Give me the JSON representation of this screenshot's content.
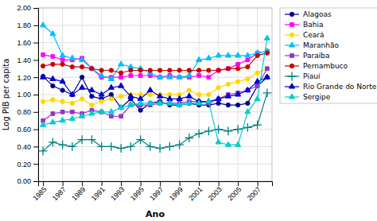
{
  "chart_data": {
    "type": "line",
    "x": [
      1985,
      1986,
      1987,
      1988,
      1989,
      1990,
      1991,
      1992,
      1993,
      1994,
      1995,
      1996,
      1997,
      1998,
      1999,
      2000,
      2001,
      2002,
      2003,
      2004,
      2005,
      2006,
      2007,
      2008
    ],
    "series": [
      {
        "name": "Alagoas",
        "color": "#00008B",
        "marker": "circle",
        "values": [
          1.21,
          1.1,
          1.05,
          1.0,
          1.2,
          0.98,
          0.95,
          1.0,
          0.85,
          0.95,
          0.82,
          0.9,
          0.92,
          0.88,
          0.88,
          0.9,
          0.88,
          0.88,
          0.9,
          0.88,
          0.88,
          0.9,
          1.1,
          1.2
        ]
      },
      {
        "name": "Bahia",
        "color": "#FF00FF",
        "marker": "square",
        "values": [
          1.46,
          1.44,
          1.4,
          1.4,
          1.42,
          1.3,
          1.2,
          1.2,
          1.2,
          1.22,
          1.22,
          1.22,
          1.2,
          1.22,
          1.2,
          1.2,
          1.22,
          1.2,
          1.28,
          1.3,
          1.35,
          1.4,
          1.48,
          1.5
        ]
      },
      {
        "name": "Ceará",
        "color": "#FFD700",
        "marker": "circle",
        "values": [
          0.92,
          0.94,
          0.92,
          0.9,
          0.95,
          0.88,
          0.92,
          0.95,
          0.98,
          1.0,
          1.0,
          1.0,
          1.0,
          1.0,
          1.0,
          1.05,
          1.0,
          1.0,
          1.08,
          1.12,
          1.15,
          1.18,
          1.25,
          1.3
        ]
      },
      {
        "name": "Maranhão",
        "color": "#00BFFF",
        "marker": "triangle",
        "values": [
          1.8,
          1.7,
          1.45,
          1.42,
          1.4,
          1.3,
          1.22,
          1.18,
          1.35,
          1.32,
          1.3,
          1.25,
          1.2,
          1.2,
          1.2,
          1.22,
          1.4,
          1.42,
          1.45,
          1.45,
          1.45,
          1.45,
          1.48,
          1.5
        ]
      },
      {
        "name": "Paraíba",
        "color": "#9932CC",
        "marker": "square",
        "values": [
          0.7,
          0.78,
          0.8,
          0.8,
          0.78,
          0.82,
          0.8,
          0.75,
          0.75,
          0.88,
          0.88,
          0.88,
          0.9,
          0.9,
          0.9,
          0.92,
          0.92,
          0.9,
          0.95,
          1.0,
          1.02,
          1.05,
          1.1,
          1.3
        ]
      },
      {
        "name": "Pernambuco",
        "color": "#CC0000",
        "marker": "circle",
        "values": [
          1.33,
          1.35,
          1.35,
          1.32,
          1.32,
          1.3,
          1.28,
          1.28,
          1.25,
          1.28,
          1.28,
          1.28,
          1.28,
          1.28,
          1.28,
          1.28,
          1.28,
          1.28,
          1.28,
          1.3,
          1.3,
          1.32,
          1.45,
          1.48
        ]
      },
      {
        "name": "Piauí",
        "color": "#008080",
        "marker": "plus",
        "values": [
          0.35,
          0.45,
          0.42,
          0.4,
          0.48,
          0.48,
          0.4,
          0.4,
          0.38,
          0.4,
          0.48,
          0.4,
          0.38,
          0.4,
          0.42,
          0.5,
          0.55,
          0.58,
          0.6,
          0.58,
          0.6,
          0.62,
          0.65,
          1.02
        ]
      },
      {
        "name": "Rio Grande do Norte",
        "color": "#0000CD",
        "marker": "triangle",
        "values": [
          1.2,
          1.18,
          1.15,
          1.0,
          1.08,
          1.05,
          1.0,
          1.08,
          1.1,
          0.98,
          0.95,
          1.05,
          0.98,
          0.95,
          0.95,
          0.98,
          0.92,
          0.92,
          0.95,
          0.98,
          1.0,
          1.05,
          1.15,
          1.2
        ]
      },
      {
        "name": "Sergipe",
        "color": "#00CED1",
        "marker": "triangle",
        "values": [
          0.65,
          0.68,
          0.7,
          0.72,
          0.75,
          0.78,
          0.8,
          0.8,
          0.85,
          0.88,
          0.9,
          0.9,
          0.9,
          0.9,
          0.88,
          0.9,
          0.9,
          0.92,
          0.45,
          0.42,
          0.42,
          0.8,
          0.95,
          1.65
        ]
      }
    ],
    "xlabel": "Ano",
    "ylabel": "Log PIB per capita",
    "xlim": [
      1984.5,
      2008.5
    ],
    "xticks": [
      1985,
      1987,
      1989,
      1991,
      1993,
      1995,
      1997,
      1999,
      2001,
      2003,
      2005,
      2007
    ],
    "ylim": [
      0.0,
      2.0
    ],
    "yticks": [
      {
        "value": 0.0,
        "label": "0.00"
      },
      {
        "value": 0.2,
        "label": "0.20"
      },
      {
        "value": 0.4,
        "label": "0.40"
      },
      {
        "value": 0.6,
        "label": "0.60"
      },
      {
        "value": 0.8,
        "label": "0.80"
      },
      {
        "value": 1.0,
        "label": "1.00"
      },
      {
        "value": 1.2,
        "label": "1.20"
      },
      {
        "value": 1.4,
        "label": "1.40"
      },
      {
        "value": 1.6,
        "label": "1.60"
      },
      {
        "value": 1.8,
        "label": "1.80"
      },
      {
        "value": 2.0,
        "label": "2.00"
      }
    ],
    "grid": true,
    "legend": "right"
  }
}
